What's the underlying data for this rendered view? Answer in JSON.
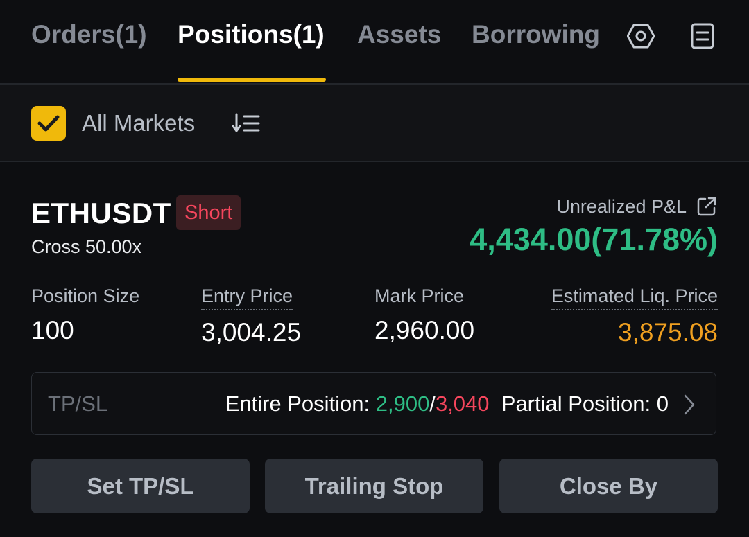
{
  "tabs": [
    {
      "label": "Orders(1)",
      "active": false
    },
    {
      "label": "Positions(1)",
      "active": true
    },
    {
      "label": "Assets",
      "active": false
    },
    {
      "label": "Borrowing",
      "active": false
    }
  ],
  "tab_icons": [
    "settings-hexagon-icon",
    "document-list-icon"
  ],
  "filter": {
    "checked": true,
    "label": "All Markets",
    "sort_icon": "sort-icon"
  },
  "position": {
    "symbol": "ETHUSDT",
    "side": "Short",
    "margin_mode": "Cross 50.00x",
    "pnl_label": "Unrealized P&L",
    "pnl_value": "4,434.00(71.78%)",
    "stats": [
      {
        "label": "Position Size",
        "value": "100"
      },
      {
        "label": "Entry Price",
        "value": "3,004.25"
      },
      {
        "label": "Mark Price",
        "value": "2,960.00"
      },
      {
        "label": "Estimated Liq. Price",
        "value": "3,875.08"
      }
    ],
    "tpsl": {
      "label": "TP/SL",
      "entire_prefix": "Entire Position: ",
      "tp": "2,900",
      "separator": "/",
      "sl": "3,040",
      "partial": "Partial Position: 0"
    },
    "actions": [
      "Set TP/SL",
      "Trailing Stop",
      "Close By"
    ]
  },
  "colors": {
    "accent": "#f0b90b",
    "profit": "#2ebd85",
    "loss": "#f6465d",
    "liq": "#f0a020"
  }
}
